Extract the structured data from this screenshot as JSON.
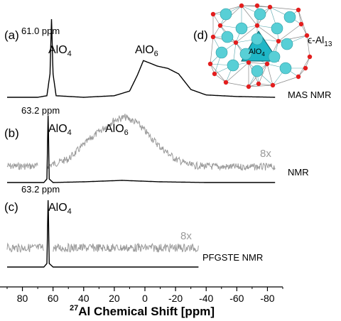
{
  "chart_data": [
    {
      "panel": "(a)",
      "type": "line",
      "annotations": [
        "61.0 ppm",
        "AlO4",
        "AlO6"
      ],
      "series": [
        {
          "name": "MAS NMR",
          "x": [
            90,
            70,
            64,
            62,
            61,
            60,
            58,
            40,
            20,
            10,
            5,
            1,
            -3,
            -8,
            -15,
            -22,
            -26,
            -30,
            -40,
            -60,
            -85
          ],
          "y": [
            0.0,
            0.0,
            0.02,
            0.3,
            1.0,
            0.3,
            0.02,
            0.0,
            0.02,
            0.08,
            0.28,
            0.47,
            0.44,
            0.4,
            0.37,
            0.3,
            0.2,
            0.1,
            0.03,
            0.01,
            0.0
          ]
        }
      ]
    },
    {
      "panel": "(b)",
      "type": "line",
      "annotations": [
        "63.2 ppm",
        "AlO4",
        "AlO6",
        "8x"
      ],
      "series": [
        {
          "name": "NMR",
          "x": [
            90,
            66,
            64,
            63.2,
            62.5,
            60,
            40,
            15,
            -10,
            -40,
            -85
          ],
          "y": [
            0.0,
            0.0,
            0.05,
            1.0,
            0.05,
            0.0,
            0.01,
            0.03,
            0.01,
            0.0,
            0.0
          ]
        },
        {
          "name": "8x",
          "x": [
            90,
            70,
            64,
            50,
            35,
            20,
            13,
            5,
            -10,
            -20,
            -30,
            -50,
            -85
          ],
          "y": [
            0.05,
            0.05,
            0.05,
            0.15,
            0.45,
            0.7,
            0.74,
            0.66,
            0.32,
            0.15,
            0.06,
            0.04,
            0.04
          ]
        }
      ]
    },
    {
      "panel": "(c)",
      "type": "line",
      "annotations": [
        "63.2 ppm",
        "AlO4",
        "8x"
      ],
      "series": [
        {
          "name": "PFGSTE NMR",
          "x": [
            90,
            66,
            64,
            63.2,
            62.5,
            60,
            -35
          ],
          "y": [
            0.0,
            0.0,
            0.05,
            1.0,
            0.05,
            0.0,
            0.0
          ]
        },
        {
          "name": "8x",
          "x": [
            90,
            -35
          ],
          "y": [
            0.05,
            0.05
          ]
        }
      ]
    }
  ],
  "xaxis": {
    "label_sup": "27",
    "label": "Al Chemical Shift [ppm]",
    "xlim": [
      90,
      -90
    ],
    "ticks": [
      80,
      60,
      40,
      20,
      0,
      -20,
      -40,
      -60,
      -80
    ],
    "reversed": true
  },
  "inset": {
    "panel": "(d)",
    "title": "ϵ-Al13",
    "center_label": "AlO4"
  },
  "colors": {
    "main": "#000000",
    "scaled": "#9a9a9a",
    "inset_sphere": "#58cfd6",
    "inset_oxygen": "#e31e1e",
    "inset_tetra": "#1fb7c7"
  }
}
